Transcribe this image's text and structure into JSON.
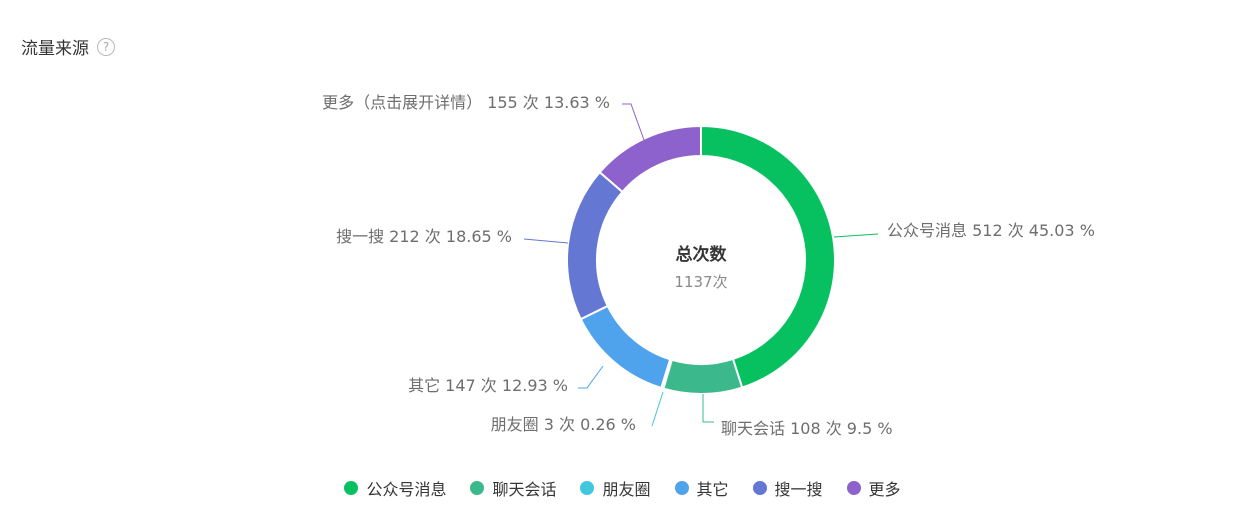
{
  "header": {
    "title": "流量来源",
    "help_icon": "?"
  },
  "chart_data": {
    "type": "pie",
    "center_title": "总次数",
    "center_value": "1137次",
    "total": 1137,
    "unit": "次",
    "categories": [
      "公众号消息",
      "聊天会话",
      "朋友圈",
      "其它",
      "搜一搜",
      "更多"
    ],
    "values": [
      512,
      108,
      3,
      147,
      212,
      155
    ],
    "percents": [
      "45.03",
      "9.5",
      "0.26",
      "12.93",
      "18.65",
      "13.63"
    ],
    "labels": [
      "公众号消息 512 次 45.03 %",
      "聊天会话 108 次 9.5 %",
      "朋友圈 3 次 0.26 %",
      "其它 147 次 12.93 %",
      "搜一搜 212 次 18.65 %",
      "更多（点击展开详情） 155 次 13.63 %"
    ],
    "colors": [
      "#07c160",
      "#3bb98c",
      "#42c6de",
      "#4fa3ec",
      "#6477d3",
      "#8e62cc"
    ],
    "legend_position": "bottom"
  }
}
